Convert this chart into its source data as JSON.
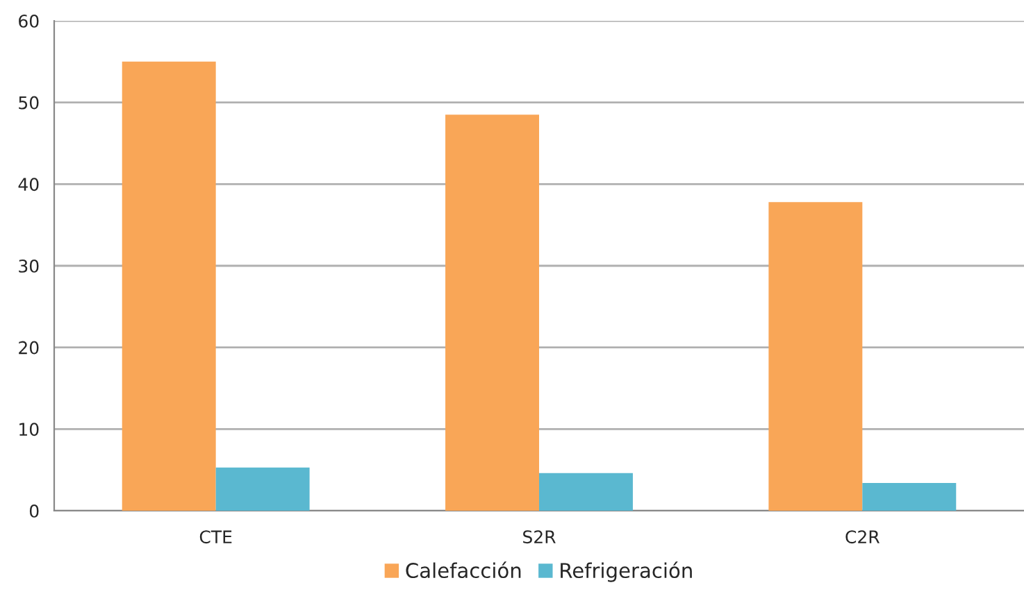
{
  "chart_data": {
    "type": "bar",
    "categories": [
      "CTE",
      "S2R",
      "C2R"
    ],
    "series": [
      {
        "name": "Calefacción",
        "color": "#f9a657",
        "values": [
          55.0,
          48.5,
          37.8
        ]
      },
      {
        "name": "Refrigeración",
        "color": "#5ab8d0",
        "values": [
          5.3,
          4.6,
          3.4
        ]
      }
    ],
    "ylim": [
      0,
      60
    ],
    "yticks": [
      0,
      10,
      20,
      30,
      40,
      50,
      60
    ],
    "grid": "y",
    "legend": "bottom"
  }
}
